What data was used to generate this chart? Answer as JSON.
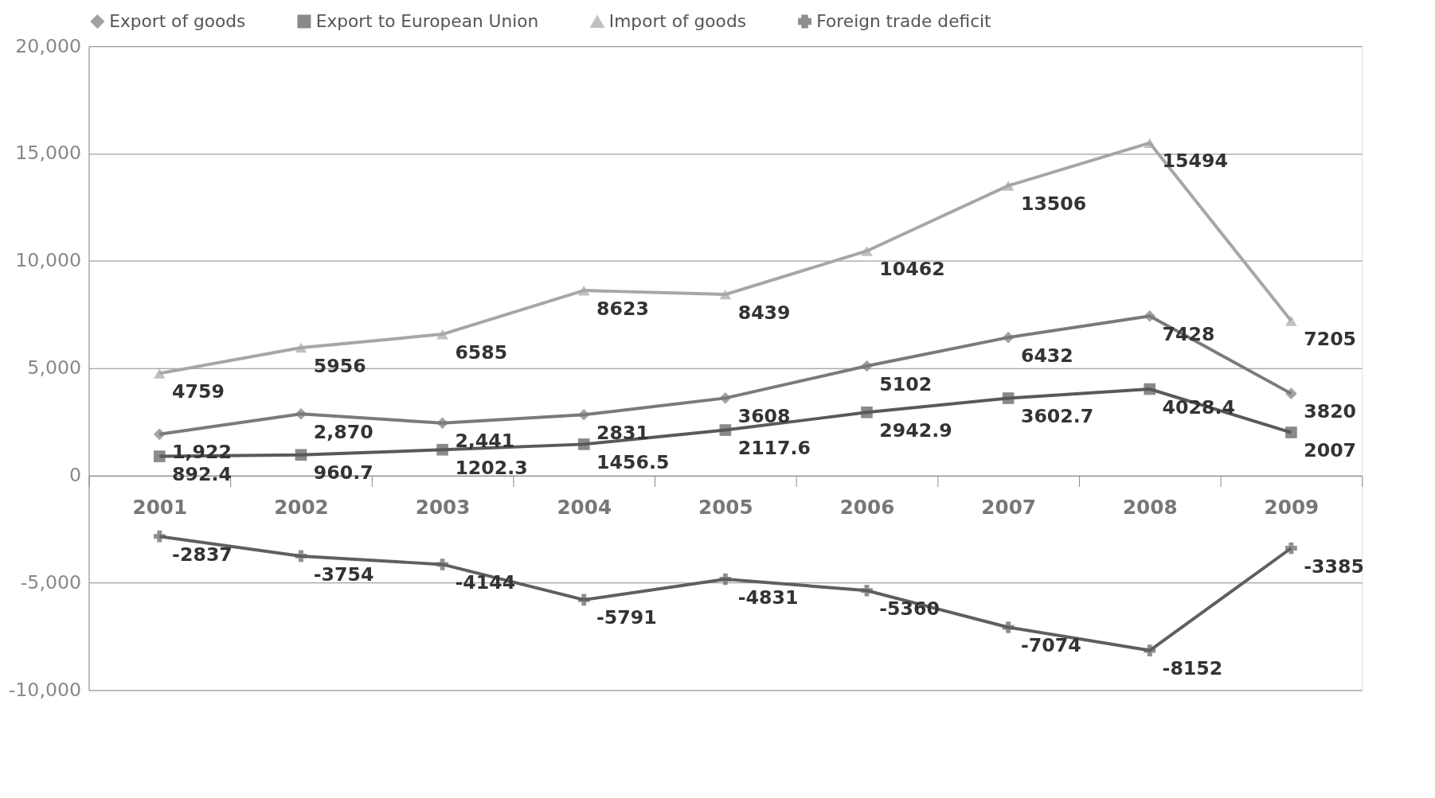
{
  "chart_data": {
    "type": "line",
    "categories": [
      "2001",
      "2002",
      "2003",
      "2004",
      "2005",
      "2006",
      "2007",
      "2008",
      "2009"
    ],
    "series": [
      {
        "name": "Export of goods",
        "color": "#7a7a7a",
        "marker": "diamond",
        "values": [
          1922,
          2870,
          2441,
          2831,
          3608,
          5102,
          6432,
          7428,
          3820
        ],
        "value_labels": [
          "1,922",
          "2,870",
          "2,441",
          "2831",
          "3608",
          "5102",
          "6432",
          "7428",
          "3820"
        ]
      },
      {
        "name": "Export to European Union",
        "color": "#595959",
        "marker": "square",
        "values": [
          892.4,
          960.7,
          1202.3,
          1456.5,
          2117.6,
          2942.9,
          3602.7,
          4028.4,
          2007
        ],
        "value_labels": [
          "892.4",
          "960.7",
          "1202.3",
          "1456.5",
          "2117.6",
          "2942.9",
          "3602.7",
          "4028.4",
          "2007"
        ]
      },
      {
        "name": "Import of goods",
        "color": "#a6a6a6",
        "marker": "triangle",
        "values": [
          4759,
          5956,
          6585,
          8623,
          8439,
          10462,
          13506,
          15494,
          7205
        ],
        "value_labels": [
          "4759",
          "5956",
          "6585",
          "8623",
          "8439",
          "10462",
          "13506",
          "15494",
          "7205"
        ]
      },
      {
        "name": "Foreign trade deficit",
        "color": "#5f5f5f",
        "marker": "cross",
        "values": [
          -2837,
          -3754,
          -4144,
          -5791,
          -4831,
          -5360,
          -7074,
          -8152,
          -3385
        ],
        "value_labels": [
          "-2837",
          "-3754",
          "-4144",
          "-5791",
          "-4831",
          "-5360",
          "-7074",
          "-8152",
          "-3385"
        ]
      }
    ],
    "ylim": [
      -10000,
      20000
    ],
    "yticks": [
      {
        "value": -10000,
        "label": "-10,000"
      },
      {
        "value": -5000,
        "label": "-5,000"
      },
      0,
      {
        "value": 5000,
        "label": "5,000"
      },
      {
        "value": 10000,
        "label": "10,000"
      },
      {
        "value": 15000,
        "label": "15,000"
      },
      {
        "value": 20000,
        "label": "20,000"
      }
    ],
    "grid": "y",
    "legend": "top",
    "line_style": "solid"
  }
}
